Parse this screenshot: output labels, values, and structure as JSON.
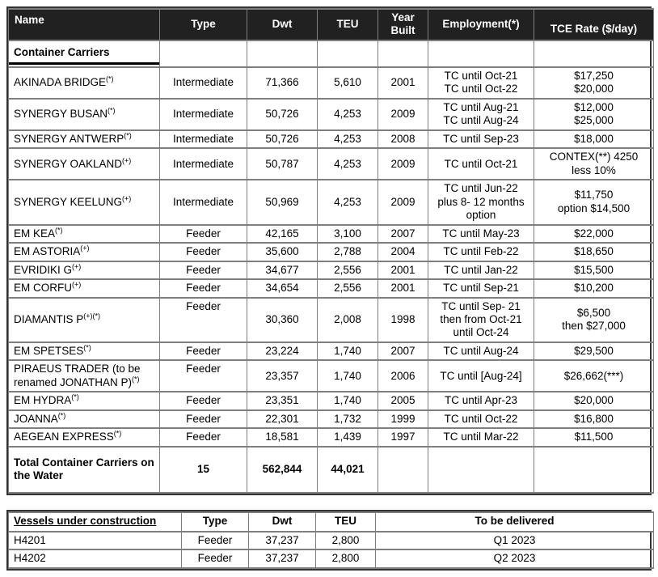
{
  "colors": {
    "header_bg": "#212121",
    "header_text": "#ffffff",
    "grid_border": "#7f7f7f",
    "outer_border": "#333333",
    "section_underline": "#000000"
  },
  "fleet_table": {
    "headers": {
      "name": "Name",
      "type": "Type",
      "dwt": "Dwt",
      "teu": "TEU",
      "year_built": "Year Built",
      "employment": "Employment(*)",
      "tce_rate": "TCE Rate ($/day)"
    },
    "section_label": "Container Carriers",
    "rows": [
      {
        "name": "AKINADA BRIDGE",
        "sup": "(*)",
        "type": "Intermediate",
        "dwt": "71,366",
        "teu": "5,610",
        "year_built": "2001",
        "employment": "TC until Oct-21\nTC until Oct-22",
        "tce_rate": "$17,250\n$20,000"
      },
      {
        "name": "SYNERGY BUSAN",
        "sup": "(*)",
        "type": "Intermediate",
        "dwt": "50,726",
        "teu": "4,253",
        "year_built": "2009",
        "employment": "TC until Aug-21\nTC until Aug-24",
        "tce_rate": "$12,000\n$25,000"
      },
      {
        "name": "SYNERGY ANTWERP",
        "sup": "(*)",
        "type": "Intermediate",
        "dwt": "50,726",
        "teu": "4,253",
        "year_built": "2008",
        "employment": "TC until Sep-23",
        "tce_rate": "$18,000"
      },
      {
        "name": "SYNERGY OAKLAND",
        "sup": "(+)",
        "type": "Intermediate",
        "dwt": "50,787",
        "teu": "4,253",
        "year_built": "2009",
        "employment": "TC until Oct-21",
        "tce_rate": "CONTEX(**) 4250\nless 10%"
      },
      {
        "name": "SYNERGY KEELUNG",
        "sup": "(+)",
        "type": "Intermediate",
        "dwt": "50,969",
        "teu": "4,253",
        "year_built": "2009",
        "employment": "TC until Jun-22\nplus 8- 12 months\noption",
        "tce_rate": "$11,750\noption $14,500"
      },
      {
        "name": "EM KEA",
        "sup": "(*)",
        "type": "Feeder",
        "dwt": "42,165",
        "teu": "3,100",
        "year_built": "2007",
        "employment": "TC until May-23",
        "tce_rate": "$22,000"
      },
      {
        "name": "EM ASTORIA",
        "sup": "(+)",
        "type": "Feeder",
        "dwt": "35,600",
        "teu": "2,788",
        "year_built": "2004",
        "employment": "TC until Feb-22",
        "tce_rate": "$18,650"
      },
      {
        "name": "EVRIDIKI G",
        "sup": "(+)",
        "type": "Feeder",
        "dwt": "34,677",
        "teu": "2,556",
        "year_built": "2001",
        "employment": "TC until Jan-22",
        "tce_rate": "$15,500"
      },
      {
        "name": "EM CORFU",
        "sup": "(+)",
        "type": "Feeder",
        "dwt": "34,654",
        "teu": "2,556",
        "year_built": "2001",
        "employment": "TC until Sep-21",
        "tce_rate": "$10,200"
      },
      {
        "name": "DIAMANTIS P",
        "sup": "(+)(*)",
        "type": "Feeder",
        "dwt": "30,360",
        "teu": "2,008",
        "year_built": "1998",
        "employment": "TC until Sep- 21\nthen from Oct-21\nuntil Oct-24",
        "tce_rate": "$6,500\nthen $27,000"
      },
      {
        "name": "EM SPETSES",
        "sup": "(*)",
        "type": "Feeder",
        "dwt": "23,224",
        "teu": "1,740",
        "year_built": "2007",
        "employment": "TC until Aug-24",
        "tce_rate": "$29,500"
      },
      {
        "name": "PIRAEUS TRADER (to be renamed JONATHAN P)",
        "sup": "(*)",
        "type": "Feeder",
        "dwt": "23,357",
        "teu": "1,740",
        "year_built": "2006",
        "employment": "TC until [Aug-24]",
        "tce_rate": "$26,662(***)"
      },
      {
        "name": "EM HYDRA",
        "sup": "(*)",
        "type": "Feeder",
        "dwt": "23,351",
        "teu": "1,740",
        "year_built": "2005",
        "employment": "TC until Apr-23",
        "tce_rate": "$20,000"
      },
      {
        "name": "JOANNA",
        "sup": "(*)",
        "type": "Feeder",
        "dwt": "22,301",
        "teu": "1,732",
        "year_built": "1999",
        "employment": "TC until Oct-22",
        "tce_rate": "$16,800"
      },
      {
        "name": "AEGEAN EXPRESS",
        "sup": "(*)",
        "type": "Feeder",
        "dwt": "18,581",
        "teu": "1,439",
        "year_built": "1997",
        "employment": "TC until Mar-22",
        "tce_rate": "$11,500"
      }
    ],
    "total_row": {
      "label": "Total Container Carriers on the Water",
      "count": "15",
      "dwt": "562,844",
      "teu": "44,021"
    }
  },
  "newbuild_table": {
    "headers": {
      "name": "Vessels under construction",
      "type": "Type",
      "dwt": "Dwt",
      "teu": "TEU",
      "delivered": "To be delivered"
    },
    "rows": [
      {
        "name": "H4201",
        "type": "Feeder",
        "dwt": "37,237",
        "teu": "2,800",
        "delivered": "Q1 2023"
      },
      {
        "name": "H4202",
        "type": "Feeder",
        "dwt": "37,237",
        "teu": "2,800",
        "delivered": "Q2 2023"
      }
    ]
  }
}
